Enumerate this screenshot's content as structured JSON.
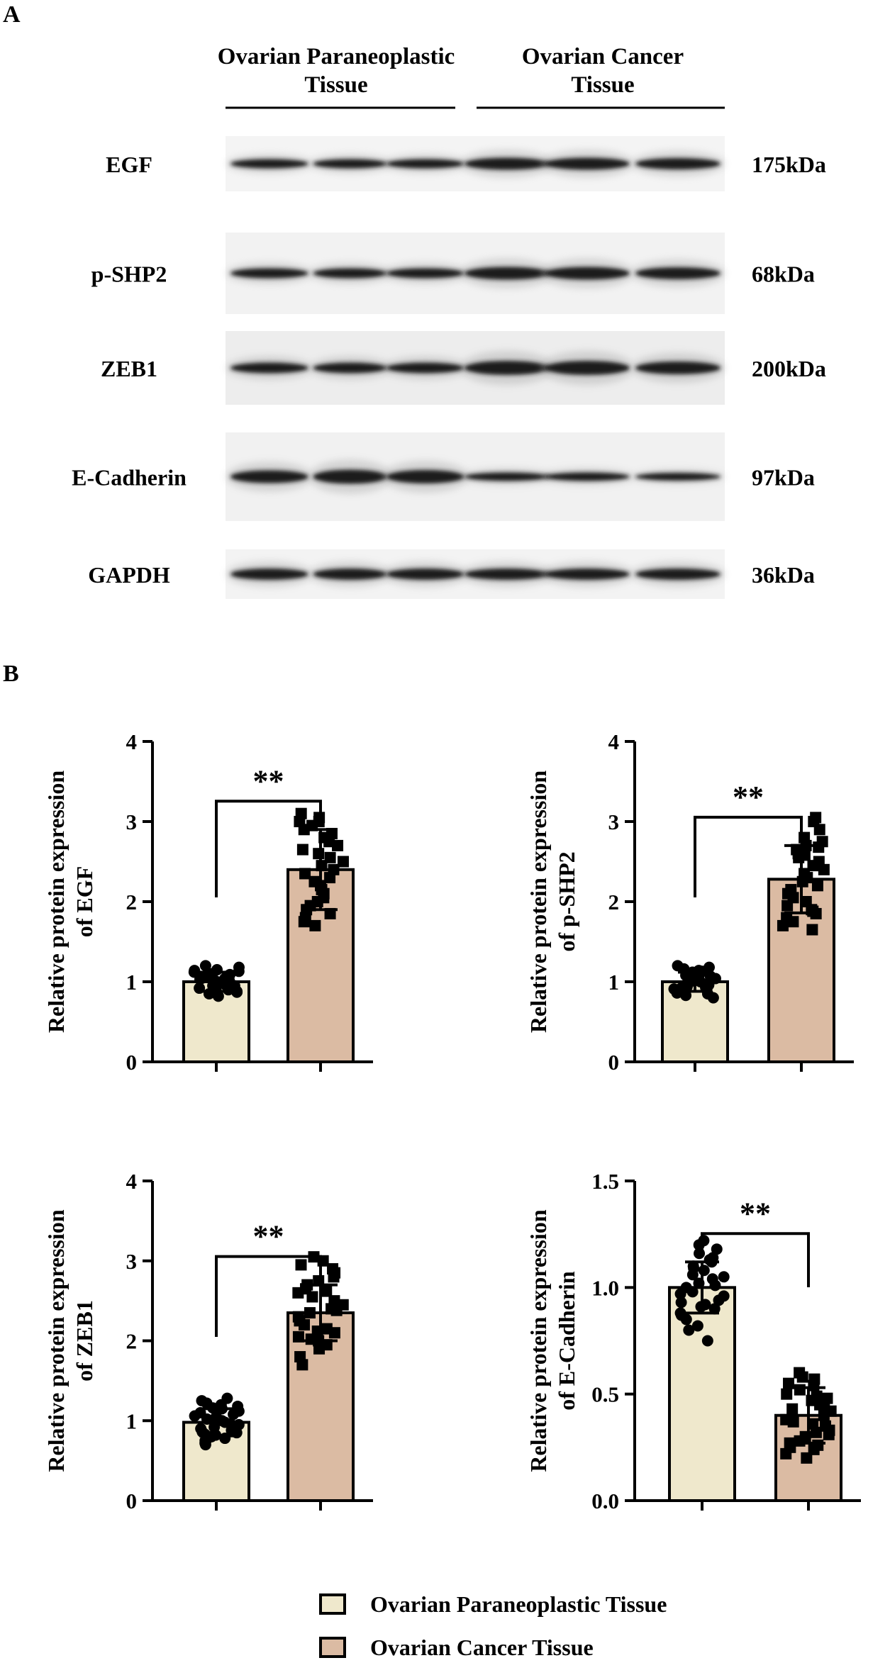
{
  "panel_a": {
    "label": "A",
    "group_headers": [
      {
        "line1": "Ovarian Paraneoplastic",
        "line2": "Tissue"
      },
      {
        "line1": "Ovarian Cancer",
        "line2": "Tissue"
      }
    ],
    "blots": [
      {
        "protein": "EGF",
        "size": "175kDa"
      },
      {
        "protein": "p-SHP2",
        "size": "68kDa"
      },
      {
        "protein": "ZEB1",
        "size": "200kDa"
      },
      {
        "protein": "E-Cadherin",
        "size": "97kDa"
      },
      {
        "protein": "GAPDH",
        "size": "36kDa"
      }
    ]
  },
  "panel_b": {
    "label": "B",
    "significance": "**",
    "legend": [
      {
        "label": "Ovarian Paraneoplastic Tissue",
        "color": "#efe8cc"
      },
      {
        "label": "Ovarian Cancer Tissue",
        "color": "#dbbba3"
      }
    ]
  },
  "chart_data": [
    {
      "type": "bar",
      "ylabel_line1": "Relative protein expression",
      "ylabel_line2": "of EGF",
      "categories": [
        "Ovarian Paraneoplastic Tissue",
        "Ovarian Cancer Tissue"
      ],
      "values": [
        1.0,
        2.4
      ],
      "errors": [
        0.12,
        0.5
      ],
      "ylim": [
        0,
        4
      ],
      "yticks": [
        "0",
        "1",
        "2",
        "3",
        "4"
      ],
      "points": [
        [
          0.82,
          0.85,
          0.88,
          0.9,
          0.92,
          0.95,
          0.96,
          0.98,
          1.0,
          1.02,
          1.04,
          1.05,
          1.06,
          1.08,
          1.1,
          1.12,
          1.14,
          1.15,
          1.18,
          1.2,
          0.87,
          0.93,
          0.99,
          1.03,
          1.09,
          1.13,
          0.9,
          1.01,
          1.07,
          0.95
        ],
        [
          1.7,
          1.75,
          1.8,
          1.85,
          1.9,
          2.0,
          2.05,
          2.1,
          2.2,
          2.25,
          2.3,
          2.4,
          2.45,
          2.5,
          2.55,
          2.6,
          2.7,
          2.75,
          2.8,
          2.85,
          2.9,
          2.95,
          3.0,
          3.05,
          3.1,
          2.35,
          2.65,
          1.95,
          2.15,
          3.0
        ]
      ]
    },
    {
      "type": "bar",
      "ylabel_line1": "Relative protein expression",
      "ylabel_line2": "of p-SHP2",
      "categories": [
        "Ovarian Paraneoplastic Tissue",
        "Ovarian Cancer Tissue"
      ],
      "values": [
        1.0,
        2.28
      ],
      "errors": [
        0.12,
        0.42
      ],
      "ylim": [
        0,
        4
      ],
      "yticks": [
        "0",
        "1",
        "2",
        "3",
        "4"
      ],
      "points": [
        [
          0.8,
          0.83,
          0.86,
          0.88,
          0.9,
          0.92,
          0.94,
          0.96,
          0.98,
          1.0,
          1.02,
          1.04,
          1.06,
          1.08,
          1.1,
          1.12,
          1.14,
          1.16,
          1.18,
          1.2,
          0.85,
          0.91,
          0.97,
          1.01,
          1.05,
          1.09,
          1.13,
          0.93,
          0.99,
          1.07
        ],
        [
          1.65,
          1.7,
          1.75,
          1.8,
          1.85,
          1.9,
          1.95,
          2.0,
          2.05,
          2.1,
          2.2,
          2.25,
          2.3,
          2.4,
          2.45,
          2.5,
          2.55,
          2.6,
          2.65,
          2.7,
          2.75,
          2.8,
          2.9,
          3.0,
          3.05,
          1.88,
          2.15,
          2.35,
          2.58,
          2.68
        ]
      ]
    },
    {
      "type": "bar",
      "ylabel_line1": "Relative protein expression",
      "ylabel_line2": "of ZEB1",
      "categories": [
        "Ovarian Paraneoplastic Tissue",
        "Ovarian Cancer Tissue"
      ],
      "values": [
        0.98,
        2.35
      ],
      "errors": [
        0.17,
        0.35
      ],
      "ylim": [
        0,
        4
      ],
      "yticks": [
        "0",
        "1",
        "2",
        "3",
        "4"
      ],
      "points": [
        [
          0.7,
          0.72,
          0.75,
          0.78,
          0.8,
          0.82,
          0.85,
          0.88,
          0.9,
          0.92,
          0.95,
          0.98,
          1.0,
          1.02,
          1.05,
          1.08,
          1.1,
          1.12,
          1.15,
          1.18,
          1.2,
          1.22,
          1.25,
          1.28,
          0.76,
          0.86,
          0.96,
          1.06,
          1.16,
          0.83
        ],
        [
          1.7,
          1.8,
          1.9,
          1.95,
          2.0,
          2.05,
          2.1,
          2.15,
          2.2,
          2.25,
          2.3,
          2.35,
          2.4,
          2.45,
          2.5,
          2.55,
          2.6,
          2.65,
          2.7,
          2.75,
          2.8,
          2.85,
          2.9,
          2.95,
          3.0,
          3.05,
          2.12,
          2.38,
          2.62,
          2.02
        ]
      ]
    },
    {
      "type": "bar",
      "ylabel_line1": "Relative protein expression",
      "ylabel_line2": "of E-Cadherin",
      "categories": [
        "Ovarian Paraneoplastic Tissue",
        "Ovarian Cancer Tissue"
      ],
      "values": [
        1.0,
        0.4
      ],
      "errors": [
        0.12,
        0.13
      ],
      "ylim": [
        0,
        1.5
      ],
      "yticks": [
        "0.0",
        "0.5",
        "1.0",
        "1.5"
      ],
      "points": [
        [
          0.75,
          0.8,
          0.82,
          0.85,
          0.88,
          0.9,
          0.92,
          0.94,
          0.96,
          0.98,
          1.0,
          1.02,
          1.04,
          1.06,
          1.08,
          1.1,
          1.12,
          1.14,
          1.16,
          1.18,
          1.2,
          1.22,
          0.87,
          0.93,
          0.97,
          1.01,
          1.05,
          1.09,
          0.91,
          1.13
        ],
        [
          0.2,
          0.22,
          0.24,
          0.25,
          0.27,
          0.28,
          0.3,
          0.32,
          0.33,
          0.35,
          0.37,
          0.38,
          0.4,
          0.42,
          0.44,
          0.45,
          0.47,
          0.48,
          0.5,
          0.52,
          0.54,
          0.55,
          0.57,
          0.58,
          0.6,
          0.31,
          0.36,
          0.43,
          0.49,
          0.26
        ]
      ]
    }
  ]
}
